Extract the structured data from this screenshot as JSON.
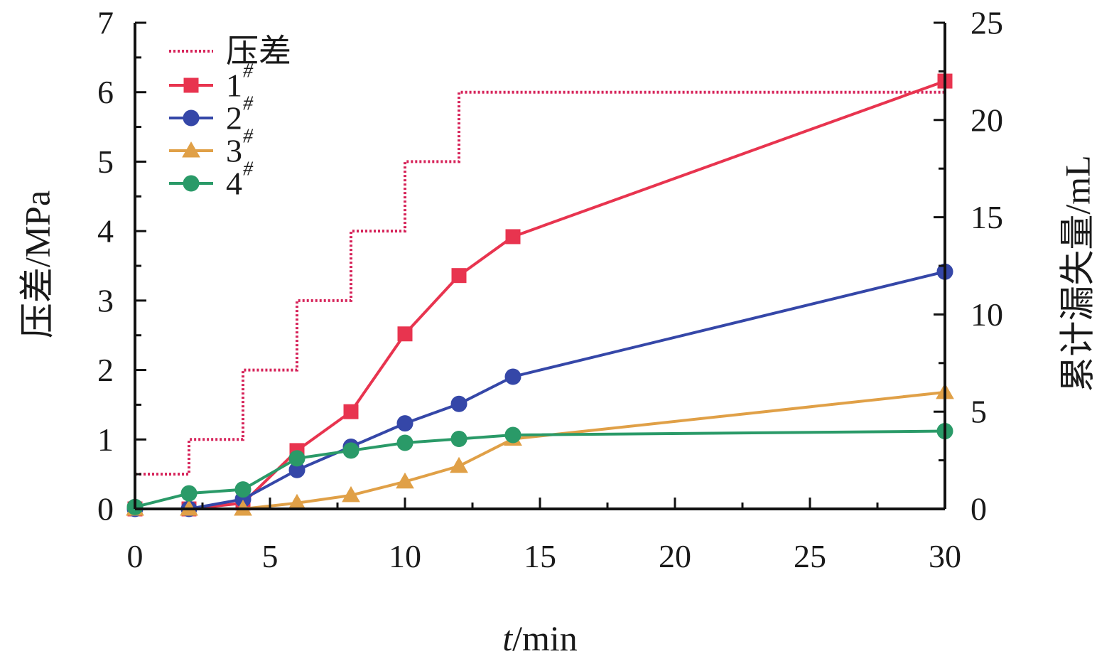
{
  "chart_data": {
    "type": "line",
    "xlabel_italic": "t",
    "xlabel_rest": "/min",
    "ylabel_left": "压差/MPa",
    "ylabel_right": "累计漏失量/mL",
    "xlim": [
      0,
      30
    ],
    "ylim_left": [
      0,
      7
    ],
    "ylim_right": [
      0,
      25
    ],
    "x_ticks": [
      0,
      5,
      10,
      15,
      20,
      25,
      30
    ],
    "y_left_ticks": [
      0,
      1,
      2,
      3,
      4,
      5,
      6,
      7
    ],
    "y_right_ticks": [
      0,
      5,
      10,
      15,
      20,
      25
    ],
    "grid": false,
    "legend_position": "top-left",
    "pressure": {
      "name": "压差",
      "axis": "left",
      "style": "dotted-step",
      "color": "#d6245a",
      "x": [
        0,
        2,
        2,
        4,
        4,
        6,
        6,
        8,
        8,
        10,
        10,
        12,
        12,
        30
      ],
      "y": [
        0.5,
        0.5,
        1,
        1,
        2,
        2,
        3,
        3,
        4,
        4,
        5,
        5,
        6,
        6
      ]
    },
    "series": [
      {
        "name": "1",
        "sup": "#",
        "axis": "right",
        "marker": "square",
        "color": "#e8344f",
        "x": [
          0,
          2,
          4,
          6,
          8,
          10,
          12,
          14,
          30
        ],
        "y": [
          0,
          0,
          0.3,
          3.0,
          5.0,
          9.0,
          12.0,
          14.0,
          22.0
        ]
      },
      {
        "name": "2",
        "sup": "#",
        "axis": "right",
        "marker": "circle",
        "color": "#3547a8",
        "x": [
          0,
          2,
          4,
          6,
          8,
          10,
          12,
          14,
          30
        ],
        "y": [
          0,
          0,
          0.5,
          2.0,
          3.2,
          4.4,
          5.4,
          6.8,
          12.2
        ]
      },
      {
        "name": "3",
        "sup": "#",
        "axis": "right",
        "marker": "triangle",
        "color": "#e0a047",
        "x": [
          0,
          2,
          4,
          6,
          8,
          10,
          12,
          14,
          30
        ],
        "y": [
          0,
          0,
          0,
          0.3,
          0.7,
          1.4,
          2.2,
          3.6,
          6.0
        ]
      },
      {
        "name": "4",
        "sup": "#",
        "axis": "right",
        "marker": "circle",
        "color": "#2a9a68",
        "x": [
          0,
          2,
          4,
          6,
          8,
          10,
          12,
          14,
          30
        ],
        "y": [
          0.1,
          0.8,
          1.0,
          2.6,
          3.0,
          3.4,
          3.6,
          3.8,
          4.0
        ]
      }
    ]
  }
}
